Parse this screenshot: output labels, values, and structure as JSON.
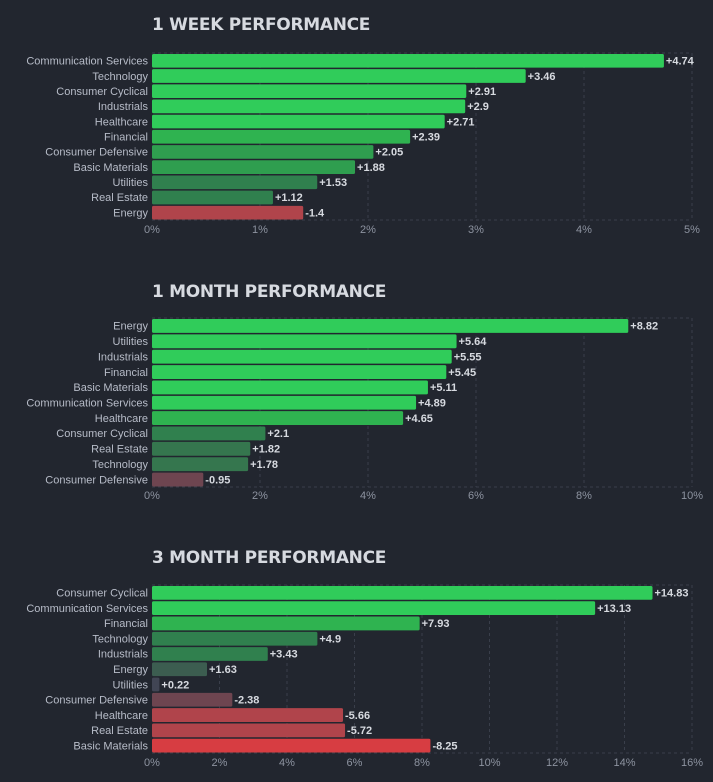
{
  "chart_data": [
    {
      "type": "bar",
      "orientation": "horizontal",
      "title": "1 WEEK PERFORMANCE",
      "categories": [
        "Communication Services",
        "Technology",
        "Consumer Cyclical",
        "Industrials",
        "Healthcare",
        "Financial",
        "Consumer Defensive",
        "Basic Materials",
        "Utilities",
        "Real Estate",
        "Energy"
      ],
      "values": [
        4.74,
        3.46,
        2.91,
        2.9,
        2.71,
        2.39,
        2.05,
        1.88,
        1.53,
        1.12,
        -1.4
      ],
      "value_labels": [
        "+4.74",
        "+3.46",
        "+2.91",
        "+2.9",
        "+2.71",
        "+2.39",
        "+2.05",
        "+1.88",
        "+1.53",
        "+1.12",
        "-1.4"
      ],
      "xlim": [
        0,
        5
      ],
      "xticks": [
        "0%",
        "1%",
        "2%",
        "3%",
        "4%",
        "5%"
      ],
      "grid": true,
      "bar_length": "absolute value"
    },
    {
      "type": "bar",
      "orientation": "horizontal",
      "title": "1 MONTH PERFORMANCE",
      "categories": [
        "Energy",
        "Utilities",
        "Industrials",
        "Financial",
        "Basic Materials",
        "Communication Services",
        "Healthcare",
        "Consumer Cyclical",
        "Real Estate",
        "Technology",
        "Consumer Defensive"
      ],
      "values": [
        8.82,
        5.64,
        5.55,
        5.45,
        5.11,
        4.89,
        4.65,
        2.1,
        1.82,
        1.78,
        -0.95
      ],
      "value_labels": [
        "+8.82",
        "+5.64",
        "+5.55",
        "+5.45",
        "+5.11",
        "+4.89",
        "+4.65",
        "+2.1",
        "+1.82",
        "+1.78",
        "-0.95"
      ],
      "xlim": [
        0,
        10
      ],
      "xticks": [
        "0%",
        "2%",
        "4%",
        "6%",
        "8%",
        "10%"
      ],
      "grid": true,
      "bar_length": "absolute value"
    },
    {
      "type": "bar",
      "orientation": "horizontal",
      "title": "3 MONTH PERFORMANCE",
      "categories": [
        "Consumer Cyclical",
        "Communication Services",
        "Financial",
        "Technology",
        "Industrials",
        "Energy",
        "Utilities",
        "Consumer Defensive",
        "Healthcare",
        "Real Estate",
        "Basic Materials"
      ],
      "values": [
        14.83,
        13.13,
        7.93,
        4.9,
        3.43,
        1.63,
        0.22,
        -2.38,
        -5.66,
        -5.72,
        -8.25
      ],
      "value_labels": [
        "+14.83",
        "+13.13",
        "+7.93",
        "+4.9",
        "+3.43",
        "+1.63",
        "+0.22",
        "-2.38",
        "-5.66",
        "-5.72",
        "-8.25"
      ],
      "xlim": [
        0,
        16
      ],
      "xticks": [
        "0%",
        "2%",
        "4%",
        "6%",
        "8%",
        "10%",
        "12%",
        "14%",
        "16%"
      ],
      "grid": true,
      "bar_length": "absolute value"
    }
  ],
  "colors": {
    "background": "#22262f",
    "positive_strong": "#30cc5a",
    "positive_medium": "#2fb350",
    "positive_weak": "#2f9e4f",
    "positive_faint": "#30804e",
    "positive_dim": "#35764e",
    "positive_muted": "#3c5d50",
    "neutral": "#414554",
    "negative_faint": "#6e4550",
    "negative_medium": "#b0444b",
    "negative_strong": "#d73d42"
  }
}
